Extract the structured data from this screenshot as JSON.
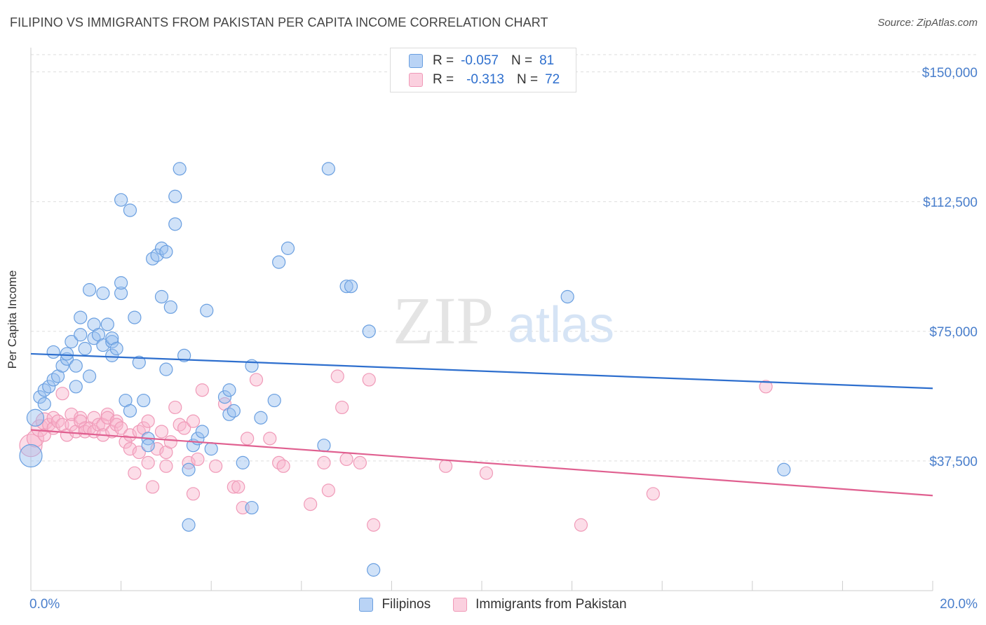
{
  "title": "FILIPINO VS IMMIGRANTS FROM PAKISTAN PER CAPITA INCOME CORRELATION CHART",
  "source": "Source: ZipAtlas.com",
  "watermark": {
    "zip": "ZIP",
    "atlas": "atlas"
  },
  "legend_top": {
    "rows": [
      {
        "r_label": "R =",
        "r_value": "-0.057",
        "n_label": "N =",
        "n_value": "81"
      },
      {
        "r_label": "R =",
        "r_value": "-0.313",
        "n_label": "N =",
        "n_value": "72"
      }
    ]
  },
  "colors": {
    "filipinos": "#6a9fe0",
    "pakistan": "#f09ab8",
    "filipinos_line": "#2e6fce",
    "pakistan_line": "#e06090",
    "tick_text": "#4a7fcc"
  },
  "chart_data": {
    "type": "scatter",
    "title": "FILIPINO VS IMMIGRANTS FROM PAKISTAN PER CAPITA INCOME CORRELATION CHART",
    "xlabel": "",
    "ylabel": "Per Capita Income",
    "xlim": [
      0,
      20
    ],
    "ylim": [
      0,
      155000
    ],
    "x_tick_labels": [
      "0.0%",
      "20.0%"
    ],
    "y_ticks": [
      37500,
      75000,
      112500,
      150000
    ],
    "y_tick_labels": [
      "$37,500",
      "$75,000",
      "$112,500",
      "$150,000"
    ],
    "grid": true,
    "legend_position": "bottom",
    "series": [
      {
        "name": "Filipinos",
        "r": -0.057,
        "n": 81,
        "trend": {
          "x": [
            0,
            20
          ],
          "y": [
            68500,
            58500
          ]
        },
        "points": [
          [
            0.0,
            39000,
            3
          ],
          [
            0.1,
            50000,
            2
          ],
          [
            0.2,
            56000,
            1
          ],
          [
            0.3,
            58000,
            1
          ],
          [
            0.3,
            54000,
            1
          ],
          [
            0.4,
            59000,
            1
          ],
          [
            0.5,
            61000,
            1
          ],
          [
            0.5,
            69000,
            1
          ],
          [
            0.6,
            62000,
            1
          ],
          [
            0.7,
            65000,
            1
          ],
          [
            0.8,
            67000,
            1
          ],
          [
            0.8,
            68500,
            1
          ],
          [
            0.9,
            72000,
            1
          ],
          [
            1.0,
            59000,
            1
          ],
          [
            1.0,
            65000,
            1
          ],
          [
            1.1,
            79000,
            1
          ],
          [
            1.1,
            74000,
            1
          ],
          [
            1.2,
            70000,
            1
          ],
          [
            1.3,
            87000,
            1
          ],
          [
            1.3,
            62000,
            1
          ],
          [
            1.4,
            77000,
            1
          ],
          [
            1.4,
            73000,
            1
          ],
          [
            1.5,
            74000,
            1
          ],
          [
            1.6,
            86000,
            1
          ],
          [
            1.6,
            71000,
            1
          ],
          [
            1.7,
            77000,
            1
          ],
          [
            1.8,
            72000,
            1
          ],
          [
            1.8,
            73000,
            1
          ],
          [
            1.8,
            68000,
            1
          ],
          [
            1.9,
            70000,
            1
          ],
          [
            2.0,
            86000,
            1
          ],
          [
            2.0,
            89000,
            1
          ],
          [
            2.0,
            113000,
            1
          ],
          [
            2.1,
            55000,
            1
          ],
          [
            2.2,
            52000,
            1
          ],
          [
            2.2,
            110000,
            1
          ],
          [
            2.3,
            79000,
            1
          ],
          [
            2.4,
            66000,
            1
          ],
          [
            2.5,
            55000,
            1
          ],
          [
            2.6,
            44000,
            1
          ],
          [
            2.6,
            42000,
            1
          ],
          [
            2.7,
            96000,
            1
          ],
          [
            2.8,
            97000,
            1
          ],
          [
            2.9,
            99000,
            1
          ],
          [
            2.9,
            85000,
            1
          ],
          [
            3.0,
            98000,
            1
          ],
          [
            3.0,
            64000,
            1
          ],
          [
            3.1,
            82000,
            1
          ],
          [
            3.2,
            114000,
            1
          ],
          [
            3.2,
            106000,
            1
          ],
          [
            3.3,
            122000,
            1
          ],
          [
            3.4,
            68000,
            1
          ],
          [
            3.5,
            35000,
            1
          ],
          [
            3.5,
            19000,
            1
          ],
          [
            3.6,
            42000,
            1
          ],
          [
            3.7,
            44000,
            1
          ],
          [
            3.8,
            46000,
            1
          ],
          [
            3.9,
            81000,
            1
          ],
          [
            4.0,
            41000,
            1
          ],
          [
            4.3,
            56000,
            1
          ],
          [
            4.4,
            58000,
            1
          ],
          [
            4.4,
            51000,
            1
          ],
          [
            4.5,
            52000,
            1
          ],
          [
            4.7,
            37000,
            1
          ],
          [
            4.9,
            24000,
            1
          ],
          [
            4.9,
            65000,
            1
          ],
          [
            5.1,
            50000,
            1
          ],
          [
            5.4,
            55000,
            1
          ],
          [
            5.5,
            95000,
            1
          ],
          [
            5.7,
            99000,
            1
          ],
          [
            6.5,
            42000,
            1
          ],
          [
            6.6,
            122000,
            1
          ],
          [
            7.0,
            88000,
            1
          ],
          [
            7.1,
            88000,
            1
          ],
          [
            7.5,
            75000,
            1
          ],
          [
            7.6,
            6000,
            1
          ],
          [
            11.9,
            85000,
            1
          ],
          [
            16.7,
            35000,
            1
          ]
        ]
      },
      {
        "name": "Immigrants from Pakistan",
        "r": -0.313,
        "n": 72,
        "trend": {
          "x": [
            0,
            20
          ],
          "y": [
            46500,
            27500
          ]
        },
        "points": [
          [
            0.0,
            42000,
            3
          ],
          [
            0.1,
            44000,
            2
          ],
          [
            0.2,
            47000,
            2
          ],
          [
            0.3,
            49000,
            2
          ],
          [
            0.3,
            45000,
            1
          ],
          [
            0.4,
            48000,
            1
          ],
          [
            0.5,
            50000,
            1
          ],
          [
            0.5,
            47000,
            1
          ],
          [
            0.6,
            49000,
            1
          ],
          [
            0.7,
            48000,
            1
          ],
          [
            0.7,
            57000,
            1
          ],
          [
            0.8,
            45000,
            1
          ],
          [
            0.9,
            48000,
            1
          ],
          [
            0.9,
            51000,
            1
          ],
          [
            1.0,
            46000,
            1
          ],
          [
            1.1,
            50000,
            1
          ],
          [
            1.1,
            49000,
            1
          ],
          [
            1.2,
            47000,
            1
          ],
          [
            1.2,
            46000,
            1
          ],
          [
            1.3,
            47000,
            1
          ],
          [
            1.4,
            46000,
            1
          ],
          [
            1.4,
            50000,
            1
          ],
          [
            1.5,
            48000,
            1
          ],
          [
            1.6,
            48000,
            1
          ],
          [
            1.6,
            45000,
            1
          ],
          [
            1.7,
            51000,
            1
          ],
          [
            1.7,
            50000,
            1
          ],
          [
            1.8,
            46000,
            1
          ],
          [
            1.9,
            49000,
            1
          ],
          [
            1.9,
            48000,
            1
          ],
          [
            2.0,
            47000,
            1
          ],
          [
            2.1,
            43000,
            1
          ],
          [
            2.2,
            41000,
            1
          ],
          [
            2.2,
            45000,
            1
          ],
          [
            2.3,
            34000,
            1
          ],
          [
            2.4,
            46000,
            1
          ],
          [
            2.4,
            40000,
            1
          ],
          [
            2.5,
            47000,
            1
          ],
          [
            2.6,
            49000,
            1
          ],
          [
            2.6,
            37000,
            1
          ],
          [
            2.7,
            30000,
            1
          ],
          [
            2.8,
            41000,
            1
          ],
          [
            2.9,
            46000,
            1
          ],
          [
            3.0,
            40000,
            1
          ],
          [
            3.0,
            36000,
            1
          ],
          [
            3.1,
            43000,
            1
          ],
          [
            3.2,
            53000,
            1
          ],
          [
            3.3,
            48000,
            1
          ],
          [
            3.4,
            47000,
            1
          ],
          [
            3.5,
            37000,
            1
          ],
          [
            3.6,
            28000,
            1
          ],
          [
            3.6,
            49000,
            1
          ],
          [
            3.7,
            38000,
            1
          ],
          [
            3.8,
            58000,
            1
          ],
          [
            4.1,
            36000,
            1
          ],
          [
            4.3,
            54000,
            1
          ],
          [
            4.5,
            30000,
            1
          ],
          [
            4.6,
            30000,
            1
          ],
          [
            4.7,
            24000,
            1
          ],
          [
            4.8,
            44000,
            1
          ],
          [
            5.0,
            61000,
            1
          ],
          [
            5.3,
            44000,
            1
          ],
          [
            5.5,
            37000,
            1
          ],
          [
            5.6,
            36000,
            1
          ],
          [
            6.2,
            25000,
            1
          ],
          [
            6.5,
            37000,
            1
          ],
          [
            6.6,
            29000,
            1
          ],
          [
            6.8,
            62000,
            1
          ],
          [
            6.9,
            53000,
            1
          ],
          [
            7.0,
            38000,
            1
          ],
          [
            7.3,
            37000,
            1
          ],
          [
            7.5,
            61000,
            1
          ],
          [
            7.6,
            19000,
            1
          ],
          [
            9.2,
            36000,
            1
          ],
          [
            10.1,
            34000,
            1
          ],
          [
            12.2,
            19000,
            1
          ],
          [
            13.8,
            28000,
            1
          ],
          [
            16.3,
            59000,
            1
          ]
        ]
      }
    ]
  }
}
